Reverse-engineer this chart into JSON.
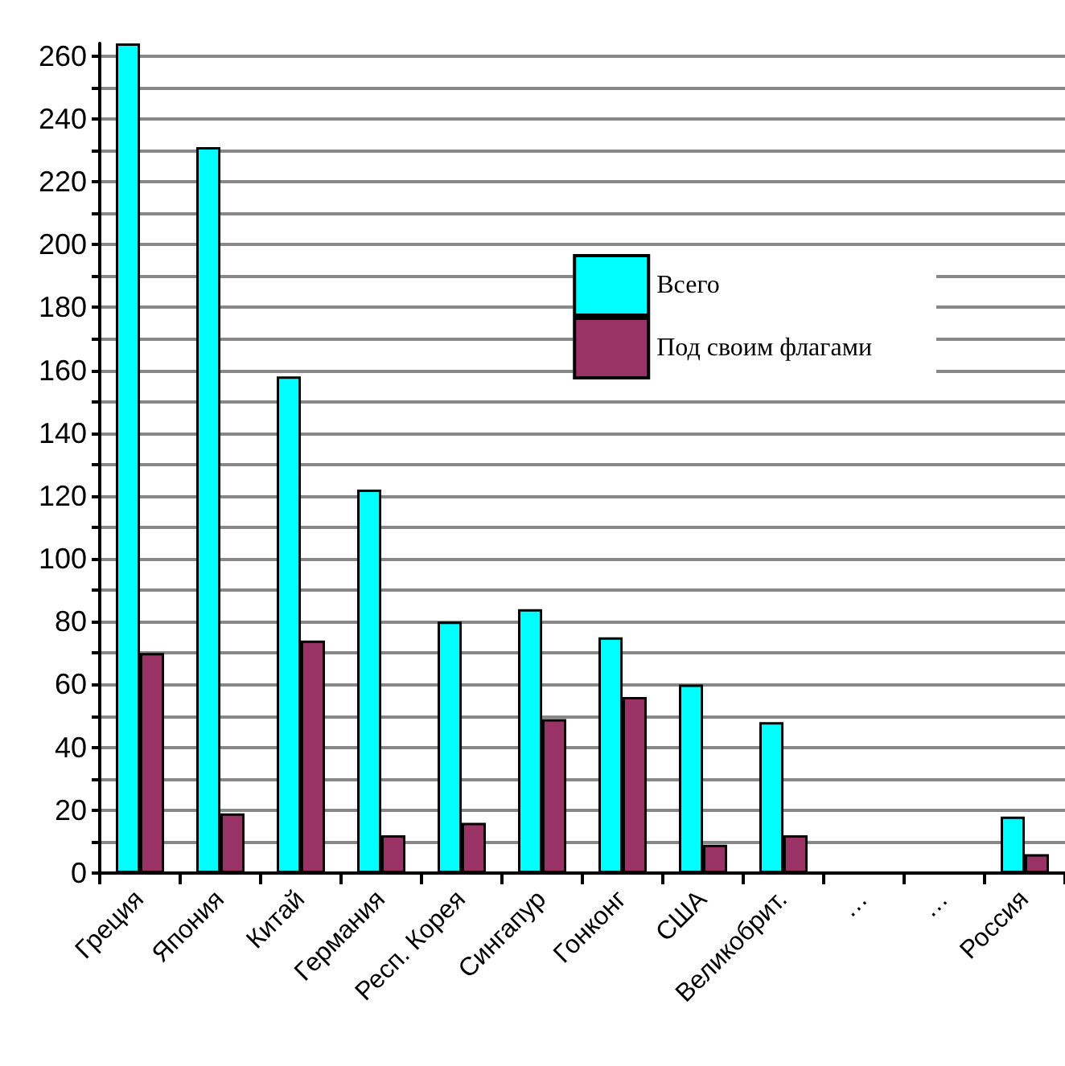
{
  "chart_data": {
    "type": "bar",
    "categories": [
      "Греция",
      "Япония",
      "Китай",
      "Германия",
      "Респ. Корея",
      "Сингапур",
      "Гонконг",
      "США",
      "Великобрит.",
      "…",
      "…",
      "Россия"
    ],
    "series": [
      {
        "name": "Всего",
        "color": "#00ffff",
        "values": [
          264,
          231,
          158,
          122,
          80,
          84,
          75,
          60,
          48,
          null,
          null,
          18
        ]
      },
      {
        "name": "Под своим флагами",
        "color": "#993366",
        "values": [
          70,
          19,
          74,
          12,
          16,
          49,
          56,
          9,
          12,
          null,
          null,
          6
        ]
      }
    ],
    "ylim": [
      0,
      264
    ],
    "yticks": [
      0,
      {
        "value": 10,
        "label": null
      },
      20,
      {
        "value": 30,
        "label": null
      },
      40,
      {
        "value": 50,
        "label": null
      },
      60,
      {
        "value": 70,
        "label": null
      },
      80,
      {
        "value": 90,
        "label": null
      },
      100,
      {
        "value": 110,
        "label": null
      },
      120,
      {
        "value": 130,
        "label": null
      },
      140,
      {
        "value": 150,
        "label": null
      },
      160,
      {
        "value": 170,
        "label": null
      },
      180,
      {
        "value": 190,
        "label": null
      },
      200,
      {
        "value": 210,
        "label": null
      },
      220,
      {
        "value": 230,
        "label": null
      },
      240,
      {
        "value": 250,
        "label": null
      },
      260
    ],
    "grid": "y",
    "legend": "top right"
  }
}
